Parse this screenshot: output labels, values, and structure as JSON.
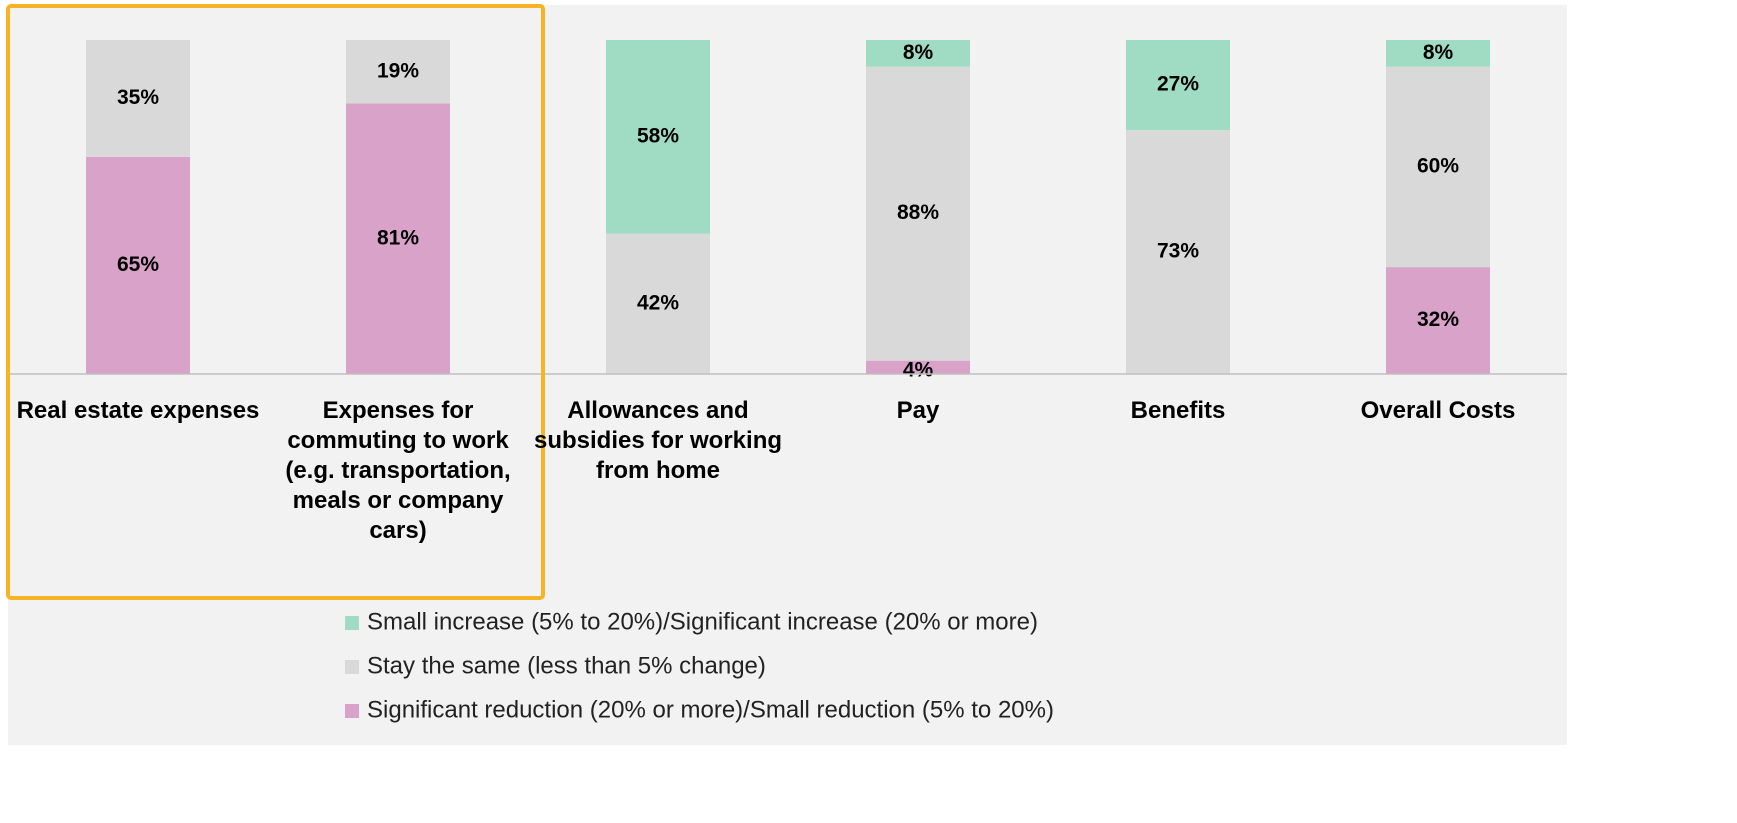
{
  "chart_data": {
    "type": "stacked-bar",
    "categories": [
      "Real estate expenses",
      "Expenses for commuting to work (e.g. transportation, meals or company cars)",
      "Allowances and subsidies for working from home",
      "Pay",
      "Benefits",
      "Overall Costs"
    ],
    "series": [
      {
        "name": "Significant reduction (20% or more)/Small reduction (5% to 20%)",
        "color": "#d9a3c9",
        "values": [
          65,
          81,
          null,
          4,
          null,
          32
        ],
        "value_labels": [
          "65%",
          "81%",
          null,
          "4%",
          null,
          "32%"
        ]
      },
      {
        "name": "Stay the same (less than 5% change)",
        "color": "#d9d9d9",
        "values": [
          35,
          19,
          42,
          88,
          73,
          60
        ],
        "value_labels": [
          "35%",
          "19%",
          "42%",
          "88%",
          "73%",
          "60%"
        ]
      },
      {
        "name": "Small increase (5% to 20%)/Significant increase (20% or more)",
        "color": "#a0dcc4",
        "values": [
          null,
          null,
          58,
          8,
          27,
          8
        ],
        "value_labels": [
          null,
          null,
          "58%",
          "8%",
          "27%",
          "8%"
        ]
      }
    ],
    "ylim": [
      0,
      100
    ]
  }
}
